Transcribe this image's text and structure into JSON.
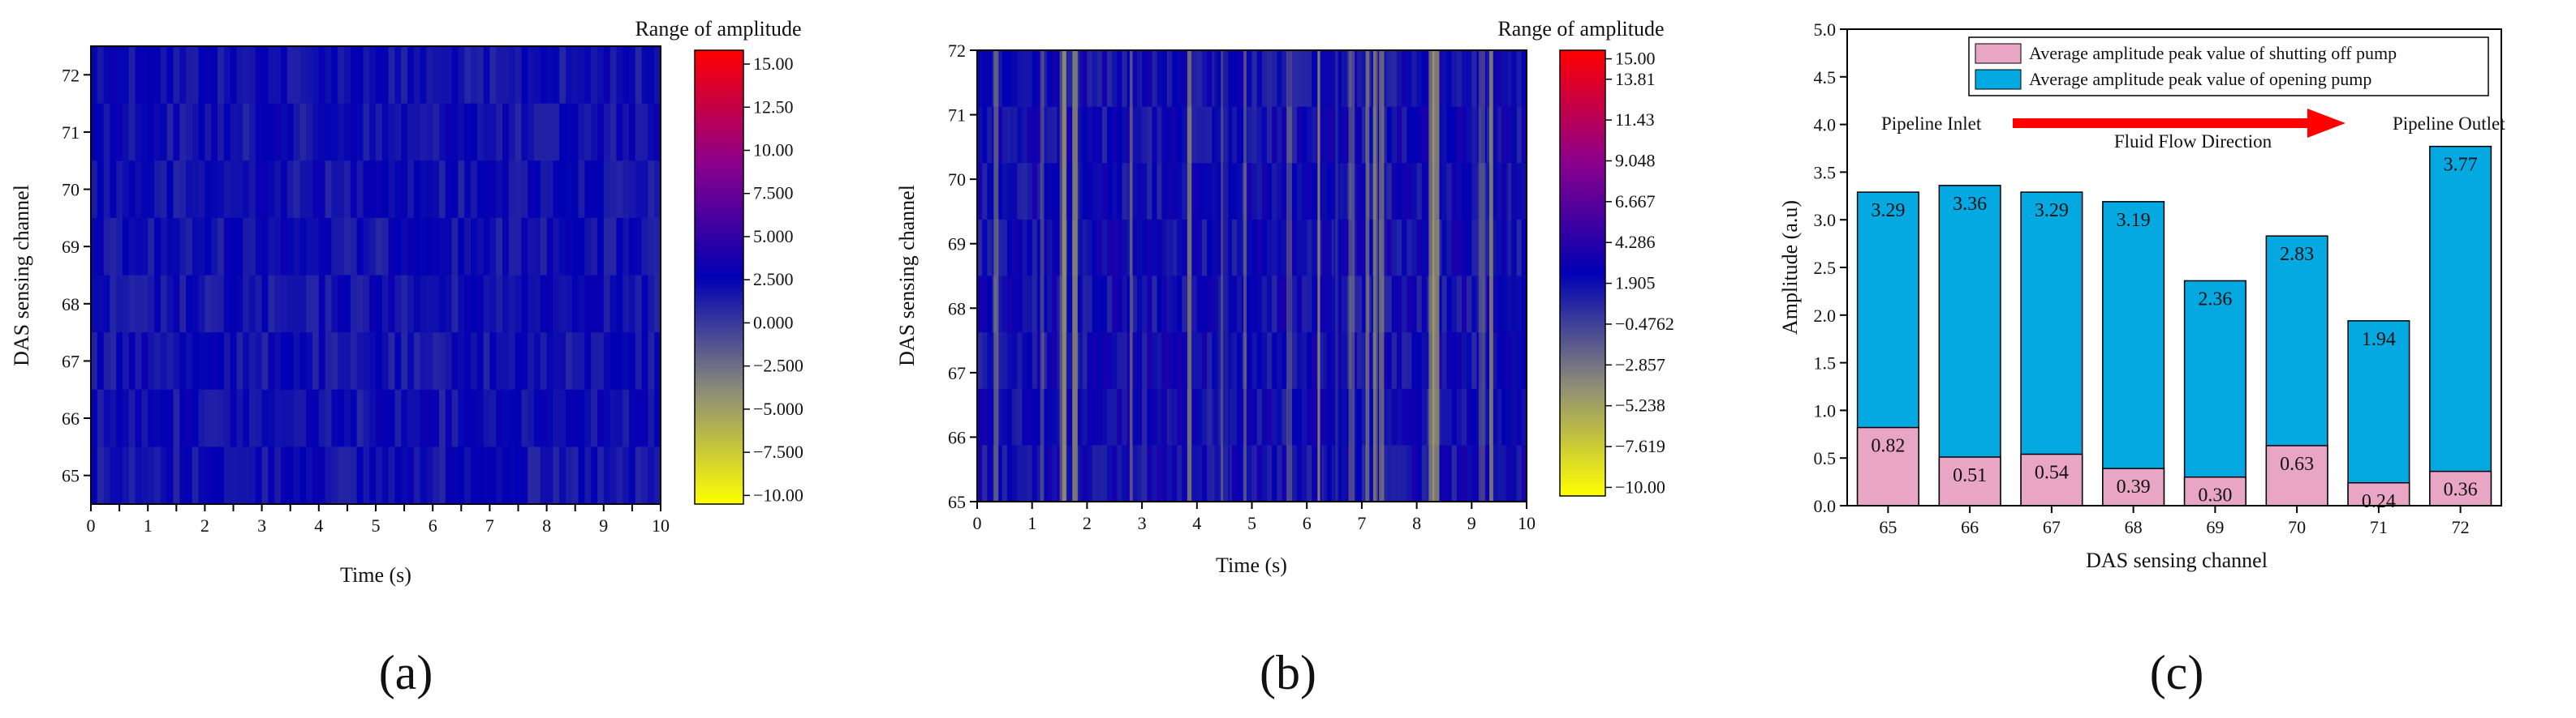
{
  "figure": {
    "panel_labels": [
      "(a)",
      "(b)",
      "(c)"
    ]
  },
  "chart_data": [
    {
      "type": "heatmap",
      "panel": "(a)",
      "xlabel": "Time (s)",
      "ylabel": "DAS sensing channel",
      "x_ticks": [
        "0",
        "0.5",
        "1",
        "1.5",
        "2",
        "2.5",
        "3",
        "3.5",
        "4",
        "4.5",
        "5",
        "5.5",
        "6",
        "6.5",
        "7",
        "7.5",
        "8",
        "8.5",
        "9",
        "9.5",
        "10"
      ],
      "y_ticks": [
        "65",
        "66",
        "67",
        "68",
        "69",
        "70",
        "71",
        "72"
      ],
      "xlim": [
        0,
        10
      ],
      "ylim": [
        64.5,
        72.5
      ],
      "colorbar": {
        "title": "Range of amplitude",
        "ticks": [
          "15.00",
          "12.50",
          "10.00",
          "7.500",
          "5.000",
          "2.500",
          "0.000",
          "−2.500",
          "−5.000",
          "−7.500",
          "−10.00"
        ],
        "min": -10.5,
        "max": 15.8,
        "colors": [
          "#ffff00",
          "#8c8c78",
          "#0000b4",
          "#8c008c",
          "#ff0000"
        ]
      }
    },
    {
      "type": "heatmap",
      "panel": "(b)",
      "xlabel": "Time (s)",
      "ylabel": "DAS sensing channel",
      "x_ticks": [
        "0",
        "1",
        "2",
        "3",
        "4",
        "5",
        "6",
        "7",
        "8",
        "9",
        "10"
      ],
      "y_ticks": [
        "65",
        "66",
        "67",
        "68",
        "69",
        "70",
        "71",
        "72"
      ],
      "xlim": [
        0,
        10
      ],
      "ylim": [
        65,
        72
      ],
      "colorbar": {
        "title": "Range of amplitude",
        "ticks": [
          "15.00",
          "13.81",
          "11.43",
          "9.048",
          "6.667",
          "4.286",
          "1.905",
          "−0.4762",
          "−2.857",
          "−5.238",
          "−7.619",
          "−10.00"
        ],
        "min": -10.5,
        "max": 15.5,
        "colors": [
          "#ffff00",
          "#8c8c78",
          "#0000b4",
          "#8c008c",
          "#ff0000"
        ]
      }
    },
    {
      "type": "bar",
      "panel": "(c)",
      "stacked": true,
      "categories": [
        "65",
        "66",
        "67",
        "68",
        "69",
        "70",
        "71",
        "72"
      ],
      "series": [
        {
          "name": "Average amplitude peak value of shutting off pump",
          "values": [
            0.82,
            0.51,
            0.54,
            0.39,
            0.3,
            0.63,
            0.24,
            0.36
          ],
          "labels": [
            "0.82",
            "0.51",
            "0.54",
            "0.39",
            "0.30",
            "0.63",
            "0.24",
            "0.36"
          ],
          "color": "#e9a6c4"
        },
        {
          "name": "Average amplitude peak value of opening pump",
          "values": [
            3.29,
            3.36,
            3.29,
            3.19,
            2.36,
            2.83,
            1.94,
            3.77
          ],
          "labels": [
            "3.29",
            "3.36",
            "3.29",
            "3.19",
            "2.36",
            "2.83",
            "1.94",
            "3.77"
          ],
          "color": "#05a9e1"
        }
      ],
      "xlabel": "DAS sensing channel",
      "ylabel": "Amplitude (a.u)",
      "ylim": [
        0,
        5
      ],
      "y_ticks": [
        "0.0",
        "0.5",
        "1.0",
        "1.5",
        "2.0",
        "2.5",
        "3.0",
        "3.5",
        "4.0",
        "4.5",
        "5.0"
      ],
      "legend_position": "top-right",
      "annotations": {
        "inlet": "Pipeline Inlet",
        "outlet": "Pipeline Outlet",
        "flow": "Fluid Flow Direction",
        "arrow_color": "#ff0000"
      }
    }
  ]
}
